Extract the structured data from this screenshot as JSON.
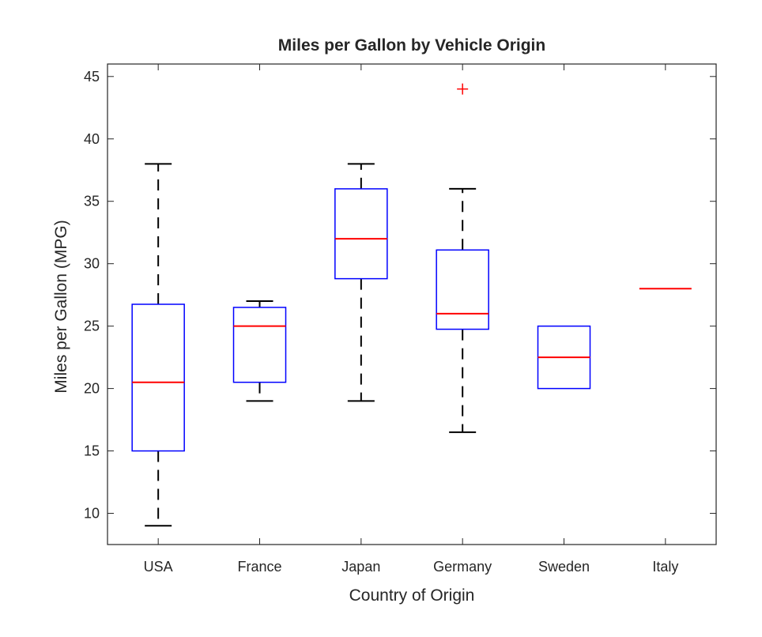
{
  "chart_data": {
    "type": "box",
    "title": "Miles per Gallon by Vehicle Origin",
    "xlabel": "Country of Origin",
    "ylabel": "Miles per Gallon (MPG)",
    "ylim": [
      7.5,
      46
    ],
    "yticks": [
      10,
      15,
      20,
      25,
      30,
      35,
      40,
      45
    ],
    "grid": false,
    "categories": [
      "USA",
      "France",
      "Japan",
      "Germany",
      "Sweden",
      "Italy"
    ],
    "boxes": [
      {
        "category": "USA",
        "whisker_low": 9,
        "q1": 15,
        "median": 20.5,
        "q3": 26.75,
        "whisker_high": 38,
        "outliers": []
      },
      {
        "category": "France",
        "whisker_low": 19,
        "q1": 20.5,
        "median": 25,
        "q3": 26.5,
        "whisker_high": 27,
        "outliers": []
      },
      {
        "category": "Japan",
        "whisker_low": 19,
        "q1": 28.8,
        "median": 32,
        "q3": 36,
        "whisker_high": 38,
        "outliers": []
      },
      {
        "category": "Germany",
        "whisker_low": 16.5,
        "q1": 24.75,
        "median": 26,
        "q3": 31.1,
        "whisker_high": 36,
        "outliers": [
          44
        ]
      },
      {
        "category": "Sweden",
        "whisker_low": 20,
        "q1": 20,
        "median": 22.5,
        "q3": 25,
        "whisker_high": 25,
        "outliers": []
      },
      {
        "category": "Italy",
        "whisker_low": 28,
        "q1": 28,
        "median": 28,
        "q3": 28,
        "whisker_high": 28,
        "outliers": []
      }
    ],
    "colors": {
      "box": "#0000ff",
      "median": "#ff0000",
      "whisker": "#000000",
      "outlier": "#ff0000",
      "axis": "#262626"
    }
  }
}
